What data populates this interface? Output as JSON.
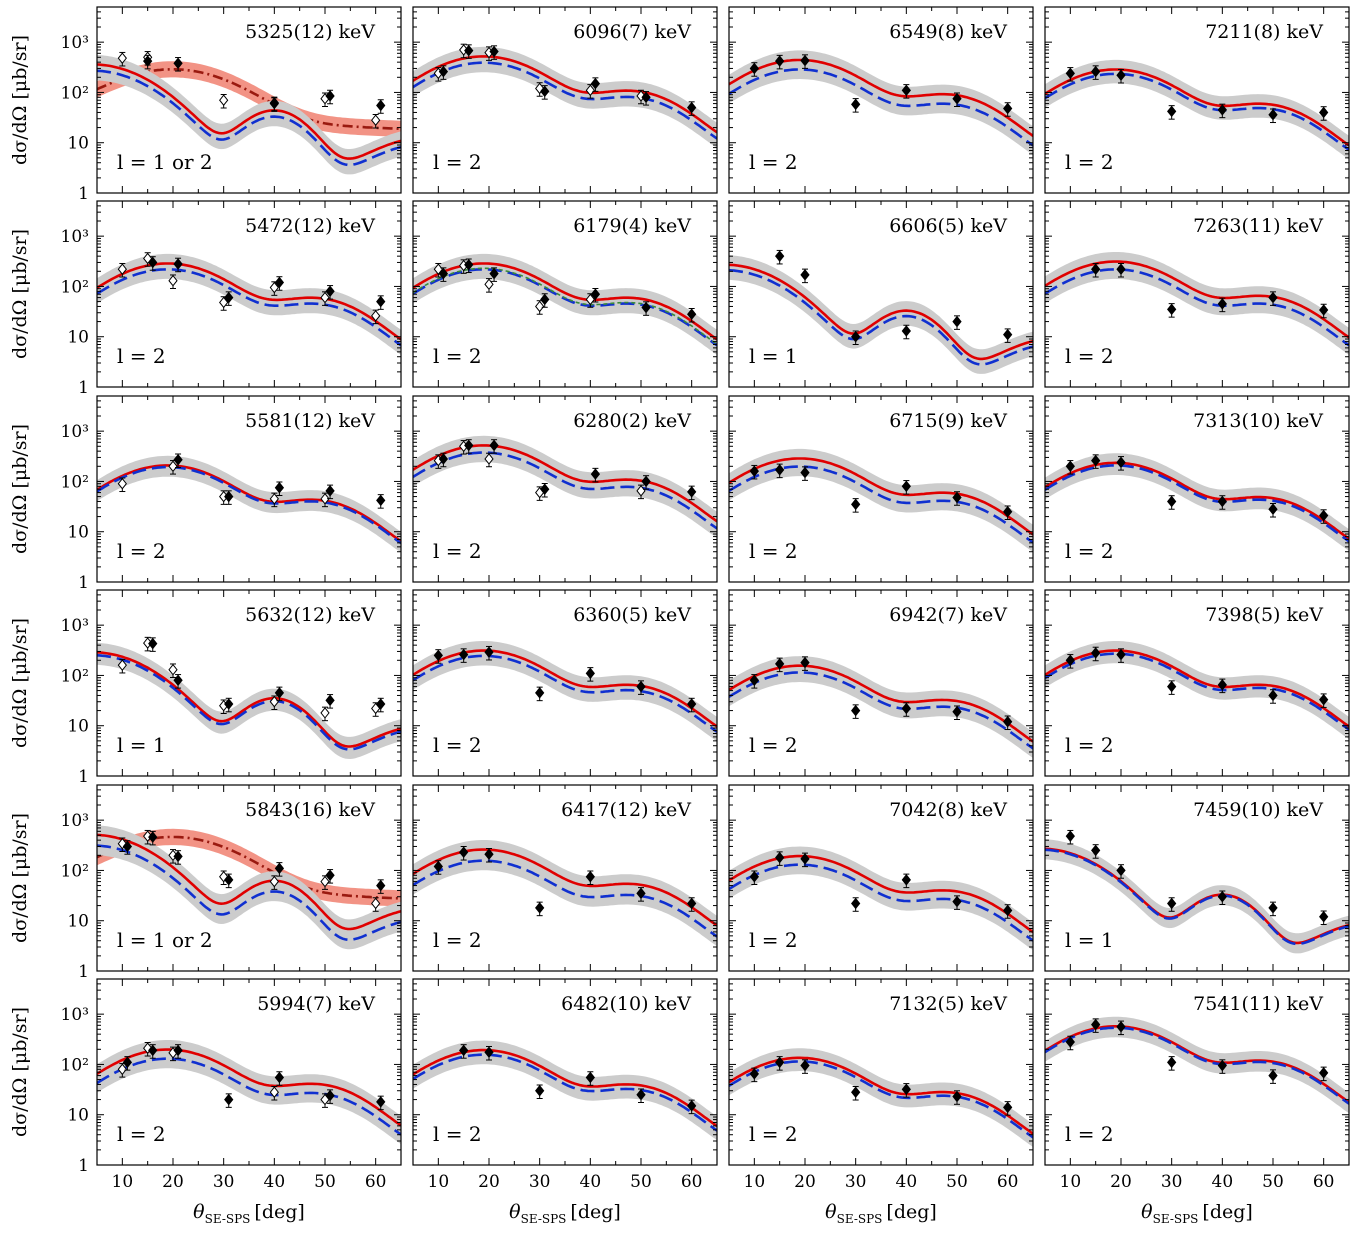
{
  "axes": {
    "xlabel": "θSE-SPS [deg]",
    "xlabel_main": "θ",
    "xlabel_sub": "SE-SPS",
    "xlabel_unit": "[deg]",
    "ylabel": "dσ/dΩ [μb/sr]",
    "xlim": [
      5,
      65
    ],
    "ylim": [
      1,
      5000
    ],
    "yscale": "log",
    "xticks": [
      10,
      20,
      30,
      40,
      50,
      60
    ],
    "yticks": [
      1,
      10,
      100,
      1000
    ],
    "ytick_labels": [
      "1",
      "10",
      "10²",
      "10³"
    ]
  },
  "colors": {
    "theory_red": "#e00000",
    "theory_blue": "#1030d0",
    "band_gray": "#cccccc",
    "band_salmon": "#f08070",
    "alt_darkred": "#9a1a10",
    "alt_green": "#3a8a3a",
    "points": "#000000"
  },
  "chart_data": [
    {
      "type": "line",
      "energy": "5325(12) keV",
      "l": "l = 1 or 2",
      "curve": "l1",
      "red_scale": 0.6,
      "blue_scale": 0.45,
      "alt": {
        "kind": "salmon",
        "peak": 260,
        "tail": 22
      },
      "filled": [
        [
          15,
          420
        ],
        [
          21,
          380
        ],
        [
          40,
          62
        ],
        [
          51,
          85
        ],
        [
          61,
          55
        ]
      ],
      "open": [
        [
          10,
          480
        ],
        [
          15,
          500
        ],
        [
          30,
          70
        ],
        [
          40,
          60
        ],
        [
          50,
          75
        ],
        [
          60,
          28
        ]
      ]
    },
    {
      "type": "line",
      "energy": "6096(7) keV",
      "l": "l = 2",
      "curve": "l2",
      "red_scale": 1.0,
      "blue_scale": 0.75,
      "filled": [
        [
          11,
          260
        ],
        [
          16,
          680
        ],
        [
          21,
          650
        ],
        [
          31,
          105
        ],
        [
          41,
          150
        ],
        [
          51,
          80
        ],
        [
          60,
          50
        ]
      ],
      "open": [
        [
          10,
          240
        ],
        [
          15,
          700
        ],
        [
          20,
          620
        ],
        [
          30,
          120
        ],
        [
          40,
          110
        ],
        [
          50,
          85
        ]
      ]
    },
    {
      "type": "line",
      "energy": "6549(8) keV",
      "l": "l = 2",
      "curve": "l2",
      "red_scale": 0.85,
      "blue_scale": 0.55,
      "filled": [
        [
          10,
          300
        ],
        [
          15,
          420
        ],
        [
          20,
          430
        ],
        [
          30,
          58
        ],
        [
          40,
          110
        ],
        [
          50,
          75
        ],
        [
          60,
          48
        ]
      ],
      "open": []
    },
    {
      "type": "line",
      "energy": "7211(8) keV",
      "l": "l = 2",
      "curve": "l2",
      "red_scale": 0.55,
      "blue_scale": 0.45,
      "filled": [
        [
          10,
          240
        ],
        [
          15,
          260
        ],
        [
          20,
          220
        ],
        [
          30,
          42
        ],
        [
          40,
          45
        ],
        [
          50,
          36
        ],
        [
          60,
          40
        ]
      ],
      "open": []
    },
    {
      "type": "line",
      "energy": "5472(12) keV",
      "l": "l = 2",
      "curve": "l2",
      "red_scale": 0.55,
      "blue_scale": 0.42,
      "filled": [
        [
          16,
          300
        ],
        [
          21,
          280
        ],
        [
          31,
          60
        ],
        [
          41,
          120
        ],
        [
          51,
          80
        ],
        [
          61,
          50
        ]
      ],
      "open": [
        [
          10,
          220
        ],
        [
          15,
          360
        ],
        [
          20,
          130
        ],
        [
          30,
          48
        ],
        [
          40,
          95
        ],
        [
          50,
          60
        ],
        [
          60,
          26
        ]
      ]
    },
    {
      "type": "line",
      "energy": "6179(4) keV",
      "l": "l = 2",
      "curve": "l2",
      "red_scale": 0.55,
      "blue_scale": 0.42,
      "green": true,
      "filled": [
        [
          11,
          180
        ],
        [
          16,
          270
        ],
        [
          21,
          180
        ],
        [
          31,
          55
        ],
        [
          41,
          70
        ],
        [
          51,
          38
        ],
        [
          60,
          28
        ]
      ],
      "open": [
        [
          10,
          220
        ],
        [
          15,
          260
        ],
        [
          20,
          110
        ],
        [
          30,
          40
        ],
        [
          40,
          55
        ]
      ]
    },
    {
      "type": "line",
      "energy": "6606(5) keV",
      "l": "l = 1",
      "curve": "l1",
      "red_scale": 0.45,
      "blue_scale": 0.35,
      "filled": [
        [
          15,
          400
        ],
        [
          20,
          170
        ],
        [
          30,
          10
        ],
        [
          40,
          13
        ],
        [
          50,
          20
        ],
        [
          60,
          11
        ]
      ],
      "open": []
    },
    {
      "type": "line",
      "energy": "7263(11) keV",
      "l": "l = 2",
      "curve": "l2",
      "red_scale": 0.6,
      "blue_scale": 0.42,
      "filled": [
        [
          15,
          220
        ],
        [
          20,
          220
        ],
        [
          30,
          35
        ],
        [
          40,
          45
        ],
        [
          50,
          60
        ],
        [
          60,
          34
        ]
      ],
      "open": []
    },
    {
      "type": "line",
      "energy": "5581(12) keV",
      "l": "l = 2",
      "curve": "l2",
      "red_scale": 0.4,
      "blue_scale": 0.37,
      "filled": [
        [
          21,
          270
        ],
        [
          31,
          50
        ],
        [
          41,
          75
        ],
        [
          51,
          65
        ],
        [
          61,
          42
        ]
      ],
      "open": [
        [
          10,
          90
        ],
        [
          20,
          200
        ],
        [
          30,
          50
        ],
        [
          40,
          45
        ],
        [
          50,
          45
        ]
      ]
    },
    {
      "type": "line",
      "energy": "6280(2) keV",
      "l": "l = 2",
      "curve": "l2",
      "red_scale": 1.0,
      "blue_scale": 0.72,
      "filled": [
        [
          11,
          280
        ],
        [
          16,
          520
        ],
        [
          21,
          520
        ],
        [
          31,
          70
        ],
        [
          41,
          140
        ],
        [
          51,
          100
        ],
        [
          60,
          62
        ]
      ],
      "open": [
        [
          10,
          260
        ],
        [
          15,
          500
        ],
        [
          20,
          280
        ],
        [
          30,
          60
        ],
        [
          50,
          65
        ]
      ]
    },
    {
      "type": "line",
      "energy": "6715(9) keV",
      "l": "l = 2",
      "curve": "l2",
      "red_scale": 0.55,
      "blue_scale": 0.38,
      "filled": [
        [
          10,
          160
        ],
        [
          15,
          170
        ],
        [
          20,
          150
        ],
        [
          30,
          35
        ],
        [
          40,
          80
        ],
        [
          50,
          48
        ],
        [
          60,
          25
        ]
      ],
      "open": []
    },
    {
      "type": "line",
      "energy": "7313(10) keV",
      "l": "l = 2",
      "curve": "l2",
      "red_scale": 0.45,
      "blue_scale": 0.4,
      "filled": [
        [
          10,
          200
        ],
        [
          15,
          260
        ],
        [
          20,
          240
        ],
        [
          30,
          40
        ],
        [
          40,
          40
        ],
        [
          50,
          28
        ],
        [
          60,
          21
        ]
      ],
      "open": []
    },
    {
      "type": "line",
      "energy": "5632(12) keV",
      "l": "l = 1",
      "curve": "l1",
      "red_scale": 0.48,
      "blue_scale": 0.42,
      "filled": [
        [
          16,
          430
        ],
        [
          21,
          80
        ],
        [
          31,
          27
        ],
        [
          41,
          45
        ],
        [
          51,
          32
        ],
        [
          61,
          27
        ]
      ],
      "open": [
        [
          10,
          160
        ],
        [
          15,
          440
        ],
        [
          20,
          130
        ],
        [
          30,
          25
        ],
        [
          40,
          30
        ],
        [
          50,
          18
        ],
        [
          60,
          22
        ]
      ]
    },
    {
      "type": "line",
      "energy": "6360(5) keV",
      "l": "l = 2",
      "curve": "l2",
      "red_scale": 0.6,
      "blue_scale": 0.47,
      "filled": [
        [
          10,
          250
        ],
        [
          15,
          260
        ],
        [
          20,
          290
        ],
        [
          30,
          45
        ],
        [
          40,
          110
        ],
        [
          50,
          60
        ],
        [
          60,
          27
        ]
      ],
      "open": []
    },
    {
      "type": "line",
      "energy": "6942(7) keV",
      "l": "l = 2",
      "curve": "l2",
      "red_scale": 0.3,
      "blue_scale": 0.22,
      "filled": [
        [
          10,
          80
        ],
        [
          15,
          170
        ],
        [
          20,
          180
        ],
        [
          30,
          20
        ],
        [
          40,
          22
        ],
        [
          50,
          19
        ],
        [
          60,
          12
        ]
      ],
      "open": []
    },
    {
      "type": "line",
      "energy": "7398(5) keV",
      "l": "l = 2",
      "curve": "l2",
      "red_scale": 0.6,
      "blue_scale": 0.52,
      "filled": [
        [
          10,
          200
        ],
        [
          15,
          280
        ],
        [
          20,
          260
        ],
        [
          30,
          60
        ],
        [
          40,
          65
        ],
        [
          50,
          40
        ],
        [
          60,
          33
        ]
      ],
      "open": []
    },
    {
      "type": "line",
      "energy": "5843(16) keV",
      "l": "l = 1 or 2",
      "curve": "l1",
      "red_scale": 0.85,
      "blue_scale": 0.52,
      "alt": {
        "kind": "salmon",
        "peak": 420,
        "tail": 35
      },
      "filled": [
        [
          11,
          300
        ],
        [
          16,
          460
        ],
        [
          21,
          190
        ],
        [
          31,
          65
        ],
        [
          41,
          110
        ],
        [
          51,
          80
        ],
        [
          61,
          50
        ]
      ],
      "open": [
        [
          10,
          340
        ],
        [
          15,
          480
        ],
        [
          20,
          200
        ],
        [
          30,
          75
        ],
        [
          40,
          60
        ],
        [
          50,
          60
        ],
        [
          60,
          22
        ]
      ]
    },
    {
      "type": "line",
      "energy": "6417(12) keV",
      "l": "l = 2",
      "curve": "l2",
      "red_scale": 0.5,
      "blue_scale": 0.3,
      "filled": [
        [
          10,
          120
        ],
        [
          15,
          230
        ],
        [
          20,
          210
        ],
        [
          30,
          18
        ],
        [
          40,
          75
        ],
        [
          50,
          35
        ],
        [
          60,
          22
        ]
      ],
      "open": []
    },
    {
      "type": "line",
      "energy": "7042(8) keV",
      "l": "l = 2",
      "curve": "l2",
      "red_scale": 0.37,
      "blue_scale": 0.25,
      "filled": [
        [
          10,
          75
        ],
        [
          15,
          180
        ],
        [
          20,
          170
        ],
        [
          30,
          22
        ],
        [
          40,
          65
        ],
        [
          50,
          24
        ],
        [
          60,
          16
        ]
      ],
      "open": []
    },
    {
      "type": "line",
      "energy": "7459(10) keV",
      "l": "l = 1",
      "curve": "l1",
      "red_scale": 0.45,
      "blue_scale": 0.43,
      "filled": [
        [
          10,
          480
        ],
        [
          15,
          250
        ],
        [
          20,
          100
        ],
        [
          30,
          22
        ],
        [
          40,
          30
        ],
        [
          50,
          18
        ],
        [
          60,
          12
        ]
      ],
      "open": []
    },
    {
      "type": "line",
      "energy": "5994(7) keV",
      "l": "l = 2",
      "curve": "l2",
      "red_scale": 0.38,
      "blue_scale": 0.25,
      "filled": [
        [
          11,
          110
        ],
        [
          16,
          190
        ],
        [
          21,
          190
        ],
        [
          31,
          20
        ],
        [
          41,
          55
        ],
        [
          51,
          24
        ],
        [
          61,
          18
        ]
      ],
      "open": [
        [
          10,
          80
        ],
        [
          15,
          210
        ],
        [
          20,
          170
        ],
        [
          40,
          28
        ],
        [
          50,
          20
        ]
      ]
    },
    {
      "type": "line",
      "energy": "6482(10) keV",
      "l": "l = 2",
      "curve": "l2",
      "red_scale": 0.37,
      "blue_scale": 0.3,
      "filled": [
        [
          15,
          190
        ],
        [
          20,
          175
        ],
        [
          30,
          30
        ],
        [
          40,
          55
        ],
        [
          50,
          25
        ],
        [
          60,
          15
        ]
      ],
      "open": []
    },
    {
      "type": "line",
      "energy": "7132(5) keV",
      "l": "l = 2",
      "curve": "l2",
      "red_scale": 0.26,
      "blue_scale": 0.22,
      "filled": [
        [
          10,
          65
        ],
        [
          15,
          110
        ],
        [
          20,
          95
        ],
        [
          30,
          28
        ],
        [
          40,
          32
        ],
        [
          50,
          23
        ],
        [
          60,
          14
        ]
      ],
      "open": []
    },
    {
      "type": "line",
      "energy": "7541(11) keV",
      "l": "l = 2",
      "curve": "l2",
      "red_scale": 1.1,
      "blue_scale": 1.03,
      "filled": [
        [
          10,
          280
        ],
        [
          15,
          620
        ],
        [
          20,
          560
        ],
        [
          30,
          110
        ],
        [
          40,
          95
        ],
        [
          50,
          60
        ],
        [
          60,
          68
        ]
      ],
      "open": []
    }
  ]
}
